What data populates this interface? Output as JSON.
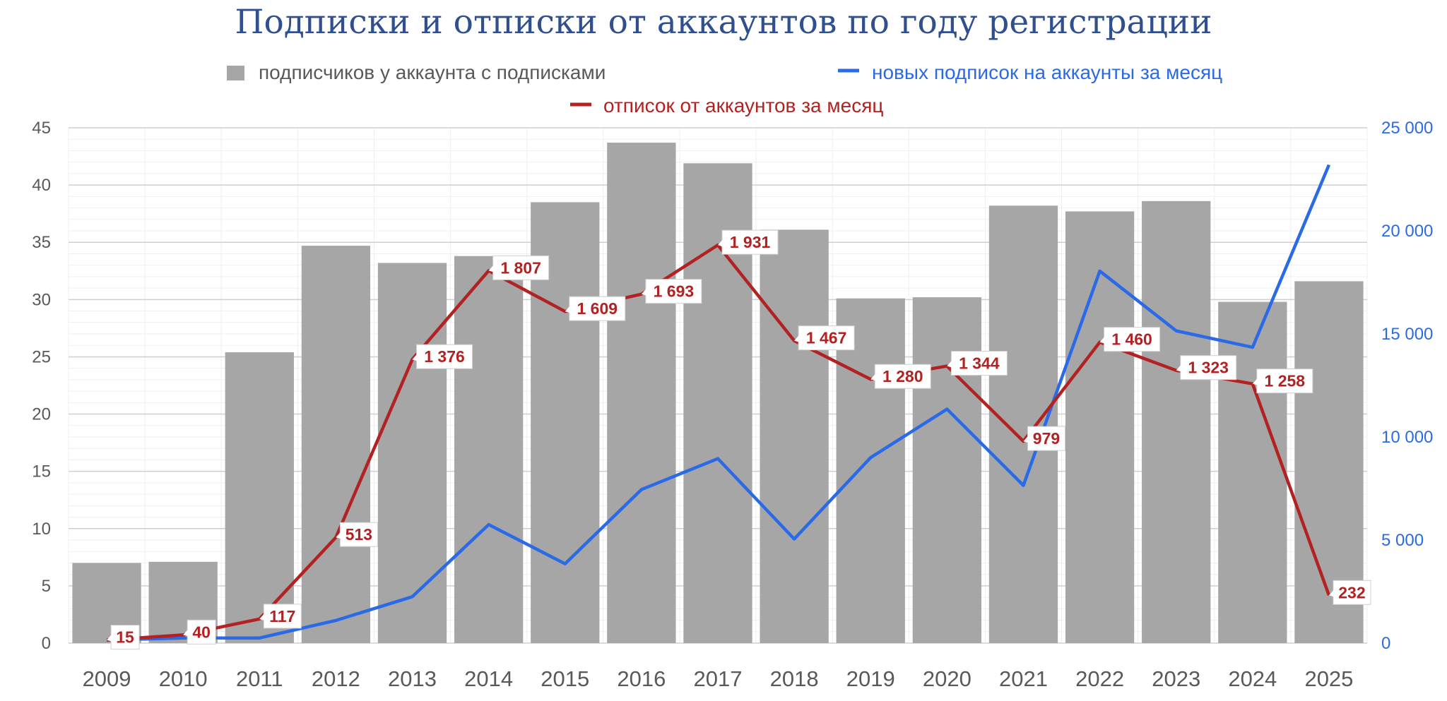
{
  "chart_data": {
    "type": "bar",
    "title": "Подписки и отписки от аккаунтов по году регистрации",
    "categories": [
      "2009",
      "2010",
      "2011",
      "2012",
      "2013",
      "2014",
      "2015",
      "2016",
      "2017",
      "2018",
      "2019",
      "2020",
      "2021",
      "2022",
      "2023",
      "2024",
      "2025"
    ],
    "series": [
      {
        "name": "подписчиков у аккаунта с подписками",
        "type": "bar",
        "axis": "left",
        "color": "#a6a6a6",
        "values": [
          7.0,
          7.1,
          25.4,
          34.7,
          33.2,
          33.8,
          38.5,
          43.7,
          41.9,
          36.1,
          30.1,
          30.2,
          38.2,
          37.7,
          38.6,
          29.8,
          31.6
        ]
      },
      {
        "name": "новых подписок на аккаунты за месяц",
        "type": "line",
        "axis": "right",
        "color": "#2a6ae6",
        "values": [
          150,
          250,
          250,
          1100,
          2250,
          5750,
          3850,
          7450,
          8950,
          5050,
          9000,
          11350,
          7650,
          18050,
          15150,
          14350,
          23200
        ]
      },
      {
        "name": "отписок от аккаунтов за месяц",
        "type": "line",
        "axis": "right",
        "color": "#b22222",
        "values": [
          15,
          40,
          117,
          513,
          1376,
          1807,
          1609,
          1693,
          1931,
          1467,
          1280,
          1344,
          979,
          1460,
          1323,
          1258,
          232
        ],
        "labels": [
          "15",
          "40",
          "117",
          "513",
          "1 376",
          "1 807",
          "1 609",
          "1 693",
          "1 931",
          "1 467",
          "1 280",
          "1 344",
          "979",
          "1 460",
          "1 323",
          "1 258",
          "232"
        ]
      }
    ],
    "y_left": {
      "min": 0,
      "max": 45,
      "ticks": [
        "0",
        "5",
        "10",
        "15",
        "20",
        "25",
        "30",
        "35",
        "40",
        "45"
      ],
      "tick_values": [
        0,
        5,
        10,
        15,
        20,
        25,
        30,
        35,
        40,
        45
      ]
    },
    "y_right": {
      "min": 0,
      "max": 25000,
      "ticks": [
        "0",
        "5 000",
        "10 000",
        "15 000",
        "20 000",
        "25 000"
      ],
      "tick_values": [
        0,
        5000,
        10000,
        15000,
        20000,
        25000
      ]
    },
    "red_line_scale_note_free": true,
    "grid": true,
    "legend_placement": "top"
  }
}
